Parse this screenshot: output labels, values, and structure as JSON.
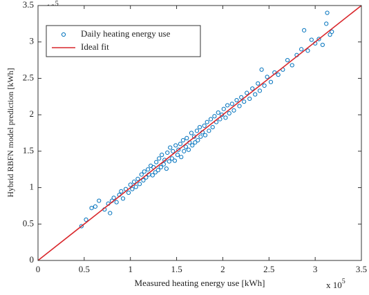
{
  "chart_data": {
    "type": "scatter",
    "xlabel": "Measured heating energy use [kWh]",
    "ylabel": "Hybrid RBFN model prediction [kWh]",
    "x_multiplier": {
      "text": "x 10",
      "power": "5"
    },
    "y_multiplier": {
      "text": "x 10",
      "power": "5"
    },
    "xlim": [
      0,
      350000
    ],
    "ylim": [
      0,
      350000
    ],
    "xticks": [
      {
        "value": 0,
        "label": "0"
      },
      {
        "value": 50000,
        "label": "0.5"
      },
      {
        "value": 100000,
        "label": "1"
      },
      {
        "value": 150000,
        "label": "1.5"
      },
      {
        "value": 200000,
        "label": "2"
      },
      {
        "value": 250000,
        "label": "2.5"
      },
      {
        "value": 300000,
        "label": "3"
      },
      {
        "value": 350000,
        "label": "3.5"
      }
    ],
    "yticks": [
      {
        "value": 0,
        "label": "0"
      },
      {
        "value": 50000,
        "label": "0.5"
      },
      {
        "value": 100000,
        "label": "1"
      },
      {
        "value": 150000,
        "label": "1.5"
      },
      {
        "value": 200000,
        "label": "2"
      },
      {
        "value": 250000,
        "label": "2.5"
      },
      {
        "value": 300000,
        "label": "3"
      },
      {
        "value": 350000,
        "label": "3.5"
      }
    ],
    "legend": "northwest",
    "series": [
      {
        "name": "Daily heating energy use",
        "type": "scatter",
        "color": "#0072bd",
        "x": [
          47000,
          52000,
          58000,
          62000,
          66000,
          72000,
          76000,
          78000,
          80000,
          82000,
          85000,
          88000,
          90000,
          92000,
          95000,
          98000,
          100000,
          102000,
          104000,
          106000,
          108000,
          110000,
          112000,
          114000,
          115000,
          117000,
          119000,
          120000,
          122000,
          124000,
          125000,
          127000,
          128000,
          130000,
          131000,
          133000,
          134000,
          136000,
          137000,
          139000,
          140000,
          142000,
          143000,
          145000,
          146000,
          148000,
          149000,
          151000,
          152000,
          154000,
          155000,
          157000,
          158000,
          160000,
          161000,
          163000,
          164000,
          166000,
          167000,
          169000,
          170000,
          172000,
          173000,
          175000,
          176000,
          178000,
          180000,
          181000,
          183000,
          185000,
          187000,
          189000,
          191000,
          193000,
          195000,
          197000,
          199000,
          201000,
          203000,
          205000,
          207000,
          210000,
          212000,
          215000,
          218000,
          220000,
          223000,
          226000,
          229000,
          232000,
          235000,
          238000,
          240000,
          242000,
          245000,
          248000,
          252000,
          256000,
          260000,
          265000,
          270000,
          275000,
          280000,
          285000,
          288000,
          292000,
          296000,
          300000,
          304000,
          308000,
          312000,
          313000,
          316000,
          318000
        ],
        "values": [
          47000,
          56000,
          72000,
          74000,
          82000,
          70000,
          78000,
          65000,
          82000,
          86000,
          80000,
          90000,
          95000,
          85000,
          98000,
          93000,
          104000,
          98000,
          108000,
          101000,
          112000,
          105000,
          118000,
          110000,
          122000,
          114000,
          125000,
          118000,
          130000,
          117000,
          128000,
          121000,
          135000,
          124000,
          140000,
          128000,
          145000,
          132000,
          138000,
          126000,
          148000,
          136000,
          155000,
          140000,
          150000,
          137000,
          158000,
          145000,
          152000,
          160000,
          142000,
          165000,
          150000,
          156000,
          168000,
          152000,
          162000,
          175000,
          158000,
          170000,
          162000,
          178000,
          165000,
          183000,
          170000,
          176000,
          185000,
          172000,
          190000,
          178000,
          194000,
          183000,
          198000,
          190000,
          203000,
          194000,
          200000,
          208000,
          196000,
          213000,
          202000,
          215000,
          206000,
          220000,
          212000,
          224000,
          218000,
          230000,
          222000,
          236000,
          228000,
          243000,
          233000,
          262000,
          240000,
          252000,
          245000,
          258000,
          255000,
          262000,
          275000,
          268000,
          282000,
          290000,
          316000,
          288000,
          303000,
          298000,
          304000,
          296000,
          325000,
          340000,
          310000,
          314000
        ]
      },
      {
        "name": "Ideal fit",
        "type": "line",
        "color": "#d9262b",
        "x": [
          0,
          350000
        ],
        "values": [
          0,
          350000
        ]
      }
    ]
  }
}
